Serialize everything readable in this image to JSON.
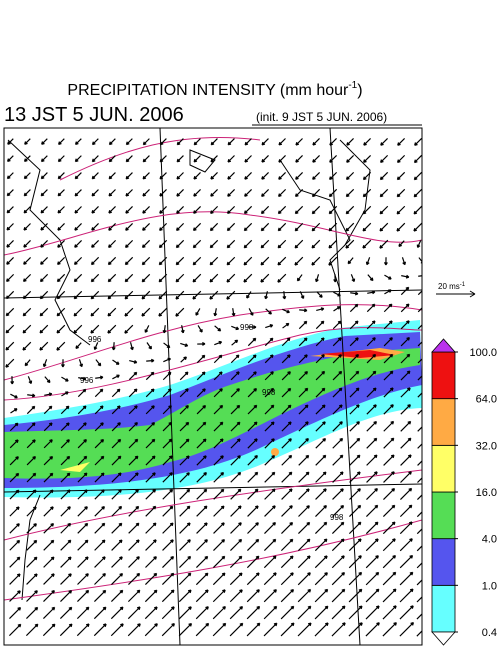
{
  "title": {
    "text": "PRECIPITATION INTENSITY (mm hour",
    "sup": "-1",
    "end": ")"
  },
  "valid_time": "13 JST 5 JUN. 2006",
  "init_time": "(init. 9 JST 5 JUN. 2006)",
  "reference_vector": {
    "text": "20 ms",
    "sup": "-1"
  },
  "contour_labels": [
    "996",
    "996",
    "998",
    "998",
    "998"
  ],
  "colorbar": {
    "levels": [
      {
        "value": 0.4,
        "label": "0.4"
      },
      {
        "value": 1,
        "label": "1.0"
      },
      {
        "value": 4,
        "label": "4.0"
      },
      {
        "value": 16,
        "label": "16.0"
      },
      {
        "value": 32,
        "label": "32.0"
      },
      {
        "value": 64,
        "label": "64.0"
      },
      {
        "value": 100,
        "label": "100.0"
      }
    ],
    "colors": [
      "#66ffff",
      "#5555ee",
      "#55dd55",
      "#ffff66",
      "#ffaa44",
      "#ee1111"
    ],
    "over_color": "#bb33ee",
    "under_color": "#ffffff"
  }
}
